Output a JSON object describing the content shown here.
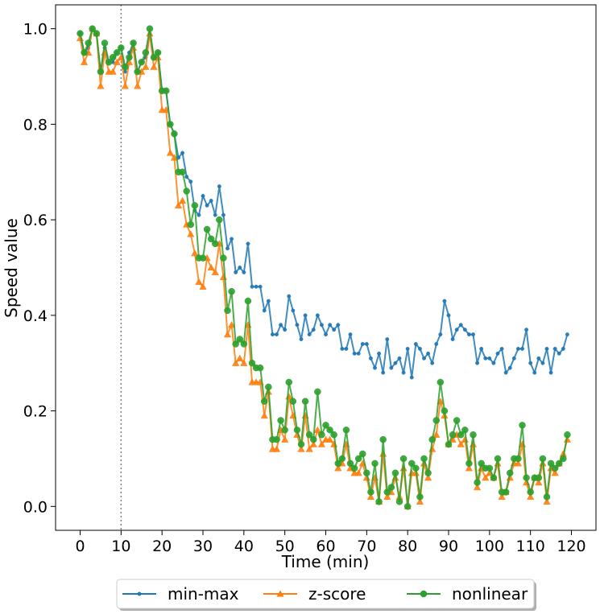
{
  "chart_data": {
    "type": "line",
    "xlabel": "Time (min)",
    "ylabel": "Speed value",
    "xlim": [
      -6,
      126
    ],
    "ylim": [
      -0.05,
      1.05
    ],
    "xticks": [
      0,
      10,
      20,
      30,
      40,
      50,
      60,
      70,
      80,
      90,
      100,
      110,
      120
    ],
    "yticks": [
      0.0,
      0.2,
      0.4,
      0.6,
      0.8,
      1.0
    ],
    "xtick_labels": [
      "0",
      "10",
      "20",
      "30",
      "40",
      "50",
      "60",
      "70",
      "80",
      "90",
      "100",
      "110",
      "120"
    ],
    "ytick_labels": [
      "0.0",
      "0.2",
      "0.4",
      "0.6",
      "0.8",
      "1.0"
    ],
    "reference_line": {
      "x": 10,
      "style": "dotted",
      "color": "#808080"
    },
    "grid": false,
    "legend_position": "bottom-center-outside",
    "x": [
      0,
      1,
      2,
      3,
      4,
      5,
      6,
      7,
      8,
      9,
      10,
      11,
      12,
      13,
      14,
      15,
      16,
      17,
      18,
      19,
      20,
      21,
      22,
      23,
      24,
      25,
      26,
      27,
      28,
      29,
      30,
      31,
      32,
      33,
      34,
      35,
      36,
      37,
      38,
      39,
      40,
      41,
      42,
      43,
      44,
      45,
      46,
      47,
      48,
      49,
      50,
      51,
      52,
      53,
      54,
      55,
      56,
      57,
      58,
      59,
      60,
      61,
      62,
      63,
      64,
      65,
      66,
      67,
      68,
      69,
      70,
      71,
      72,
      73,
      74,
      75,
      76,
      77,
      78,
      79,
      80,
      81,
      82,
      83,
      84,
      85,
      86,
      87,
      88,
      89,
      90,
      91,
      92,
      93,
      94,
      95,
      96,
      97,
      98,
      99,
      100,
      101,
      102,
      103,
      104,
      105,
      106,
      107,
      108,
      109,
      110,
      111,
      112,
      113,
      114,
      115,
      116,
      117,
      118,
      119
    ],
    "series": [
      {
        "name": "min-max",
        "color": "#1f77b4",
        "marker": "dot",
        "values": [
          0.99,
          0.95,
          0.96,
          1.0,
          0.99,
          0.91,
          0.96,
          0.93,
          0.93,
          0.95,
          0.96,
          0.91,
          0.95,
          0.97,
          0.91,
          0.93,
          0.94,
          0.99,
          0.94,
          0.95,
          0.87,
          0.87,
          0.8,
          0.78,
          0.73,
          0.74,
          0.69,
          0.68,
          0.62,
          0.61,
          0.65,
          0.63,
          0.64,
          0.61,
          0.67,
          0.61,
          0.54,
          0.56,
          0.49,
          0.5,
          0.49,
          0.55,
          0.46,
          0.46,
          0.46,
          0.41,
          0.43,
          0.36,
          0.36,
          0.38,
          0.37,
          0.44,
          0.41,
          0.38,
          0.35,
          0.4,
          0.36,
          0.37,
          0.4,
          0.38,
          0.36,
          0.38,
          0.37,
          0.38,
          0.33,
          0.33,
          0.36,
          0.32,
          0.32,
          0.34,
          0.34,
          0.31,
          0.29,
          0.32,
          0.28,
          0.35,
          0.29,
          0.3,
          0.31,
          0.28,
          0.33,
          0.27,
          0.34,
          0.33,
          0.31,
          0.32,
          0.3,
          0.34,
          0.36,
          0.43,
          0.4,
          0.35,
          0.37,
          0.38,
          0.37,
          0.36,
          0.36,
          0.3,
          0.33,
          0.31,
          0.31,
          0.3,
          0.32,
          0.33,
          0.28,
          0.29,
          0.31,
          0.33,
          0.33,
          0.37,
          0.3,
          0.28,
          0.31,
          0.3,
          0.33,
          0.28,
          0.33,
          0.32,
          0.33,
          0.36
        ]
      },
      {
        "name": "z-score",
        "color": "#ff7f0e",
        "marker": "triangle",
        "values": [
          0.98,
          0.93,
          0.95,
          1.0,
          0.99,
          0.88,
          0.95,
          0.91,
          0.91,
          0.93,
          0.94,
          0.88,
          0.93,
          0.96,
          0.88,
          0.91,
          0.92,
          0.99,
          0.92,
          0.94,
          0.83,
          0.83,
          0.74,
          0.73,
          0.63,
          0.64,
          0.59,
          0.57,
          0.53,
          0.47,
          0.46,
          0.52,
          0.5,
          0.49,
          0.55,
          0.48,
          0.36,
          0.38,
          0.3,
          0.31,
          0.3,
          0.38,
          0.26,
          0.26,
          0.26,
          0.19,
          0.24,
          0.12,
          0.12,
          0.16,
          0.14,
          0.23,
          0.19,
          0.15,
          0.12,
          0.19,
          0.12,
          0.13,
          0.16,
          0.13,
          0.14,
          0.14,
          0.13,
          0.08,
          0.09,
          0.13,
          0.08,
          0.07,
          0.07,
          0.09,
          0.06,
          0.02,
          0.06,
          0.01,
          0.11,
          0.02,
          0.03,
          0.06,
          0.02,
          0.08,
          0.0,
          0.07,
          0.07,
          0.01,
          0.09,
          0.06,
          0.12,
          0.15,
          0.22,
          0.19,
          0.13,
          0.14,
          0.15,
          0.13,
          0.14,
          0.08,
          0.13,
          0.04,
          0.08,
          0.06,
          0.07,
          0.06,
          0.09,
          0.02,
          0.03,
          0.06,
          0.09,
          0.09,
          0.13,
          0.05,
          0.02,
          0.06,
          0.05,
          0.09,
          0.01,
          0.08,
          0.07,
          0.09,
          0.11,
          0.14
        ]
      },
      {
        "name": "nonlinear",
        "color": "#2ca02c",
        "marker": "circle",
        "values": [
          0.99,
          0.95,
          0.97,
          1.0,
          0.99,
          0.91,
          0.97,
          0.93,
          0.94,
          0.95,
          0.96,
          0.92,
          0.94,
          0.97,
          0.91,
          0.93,
          0.95,
          1.0,
          0.94,
          0.95,
          0.87,
          0.87,
          0.8,
          0.78,
          0.7,
          0.7,
          0.66,
          0.59,
          0.63,
          0.52,
          0.52,
          0.58,
          0.56,
          0.55,
          0.6,
          0.52,
          0.41,
          0.45,
          0.34,
          0.35,
          0.34,
          0.43,
          0.3,
          0.29,
          0.29,
          0.22,
          0.25,
          0.14,
          0.14,
          0.18,
          0.16,
          0.26,
          0.22,
          0.16,
          0.13,
          0.22,
          0.15,
          0.14,
          0.24,
          0.15,
          0.17,
          0.16,
          0.15,
          0.09,
          0.1,
          0.16,
          0.09,
          0.08,
          0.1,
          0.11,
          0.07,
          0.03,
          0.09,
          0.01,
          0.14,
          0.03,
          0.04,
          0.07,
          0.01,
          0.1,
          0.0,
          0.09,
          0.08,
          0.02,
          0.1,
          0.07,
          0.14,
          0.18,
          0.26,
          0.2,
          0.13,
          0.15,
          0.18,
          0.15,
          0.16,
          0.09,
          0.15,
          0.05,
          0.09,
          0.08,
          0.08,
          0.06,
          0.1,
          0.03,
          0.03,
          0.07,
          0.1,
          0.1,
          0.17,
          0.06,
          0.03,
          0.06,
          0.06,
          0.1,
          0.02,
          0.09,
          0.08,
          0.09,
          0.1,
          0.15
        ]
      }
    ]
  }
}
